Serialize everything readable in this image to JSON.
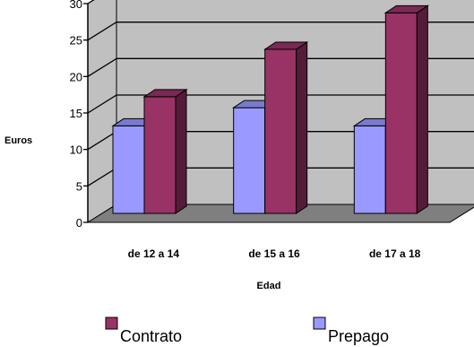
{
  "chart_data": {
    "type": "bar",
    "categories": [
      "de 12 a 14",
      "de 15 a 16",
      "de 17 a 18"
    ],
    "series": [
      {
        "name": "Prepago",
        "values": [
          12,
          14.5,
          12
        ],
        "color": "#9999ff"
      },
      {
        "name": "Contrato",
        "values": [
          16,
          22.5,
          27.5
        ],
        "color": "#993366"
      }
    ],
    "yticks": [
      0,
      5,
      10,
      15,
      20,
      25,
      30
    ],
    "ylim": [
      0,
      30
    ],
    "xlabel": "Edad",
    "ylabel": "Euros",
    "grid": true,
    "legend": [
      {
        "name": "Contrato",
        "color": "#993366"
      },
      {
        "name": "Prepago",
        "color": "#9999ff"
      }
    ],
    "legend_position": "bottom",
    "style": "3d-column",
    "wall_color": "#c0c0c0",
    "floor_color": "#7f7f7f"
  }
}
